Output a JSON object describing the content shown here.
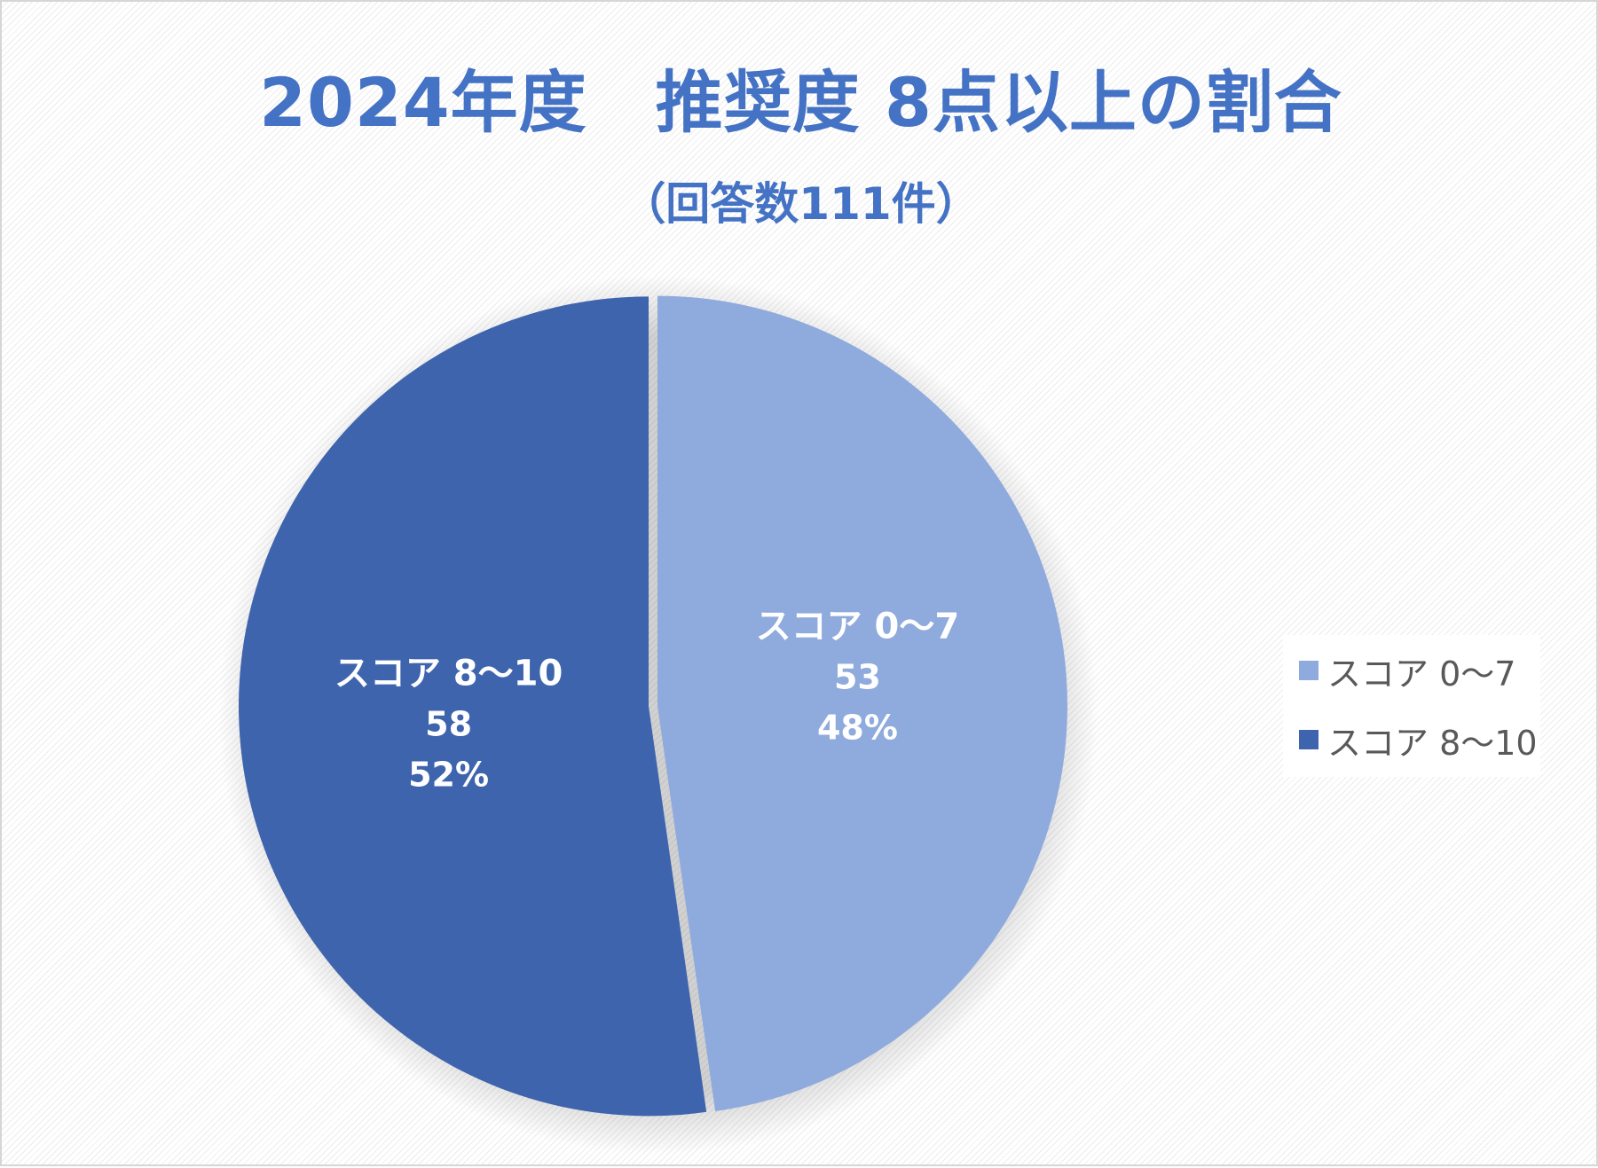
{
  "chart_data": {
    "type": "pie",
    "title": "2024年度　推奨度 8点以上の割合",
    "subtitle": "（回答数111件）",
    "total_label": "111",
    "slices": [
      {
        "label": "スコア 0～7",
        "value": 53,
        "percent_label": "48%",
        "color": "#8faadc"
      },
      {
        "label": "スコア 8～10",
        "value": 58,
        "percent_label": "52%",
        "color": "#3e64ad"
      }
    ],
    "legend": {
      "position": "right",
      "entries": [
        "スコア 0～7",
        "スコア 8～10"
      ]
    },
    "start_angle_deg": 0,
    "direction": "clockwise"
  }
}
